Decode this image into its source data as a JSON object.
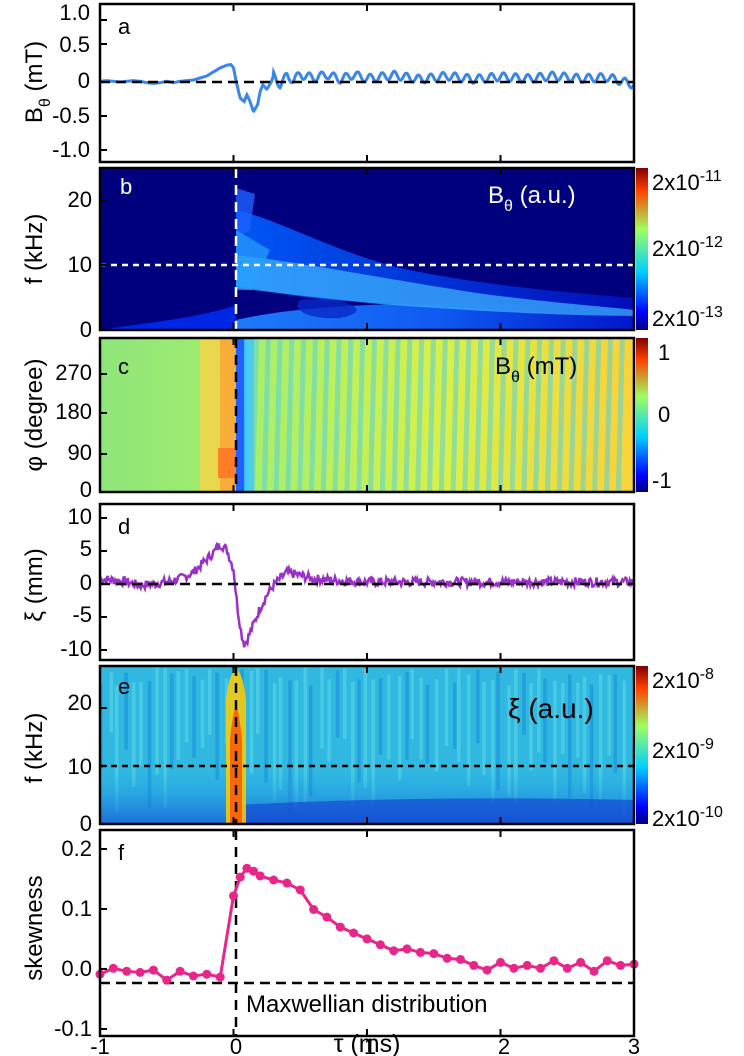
{
  "chart_data": [
    {
      "id": "a",
      "type": "line",
      "panel_label": "a",
      "ylabel": "B",
      "ylabel_sub": "θ",
      "ylabel_unit": " (mT)",
      "xlim": [
        -1,
        3
      ],
      "ylim": [
        -1.2,
        1.15
      ],
      "yticks": [
        "-1.0",
        "-0.5",
        "0",
        "0.5",
        "1.0"
      ],
      "ytick_values": [
        -1.0,
        -0.5,
        0,
        0.5,
        1.0
      ],
      "color": "#3a86e8",
      "x": [
        -1.0,
        -0.95,
        -0.9,
        -0.85,
        -0.8,
        -0.75,
        -0.7,
        -0.65,
        -0.6,
        -0.55,
        -0.5,
        -0.45,
        -0.4,
        -0.35,
        -0.3,
        -0.25,
        -0.2,
        -0.15,
        -0.1,
        -0.05,
        -0.02,
        0.0,
        0.02,
        0.05,
        0.08,
        0.1,
        0.12,
        0.15,
        0.18,
        0.2,
        0.22,
        0.25,
        0.28,
        0.3,
        0.35,
        0.4,
        0.45,
        0.5,
        0.6,
        0.7,
        0.8,
        0.9,
        1.0,
        1.2,
        1.4,
        1.6,
        1.8,
        2.0,
        2.2,
        2.4,
        2.6,
        2.8,
        3.0
      ],
      "y": [
        0.0,
        0.01,
        0.0,
        -0.01,
        0.0,
        0.01,
        0.0,
        -0.02,
        -0.03,
        -0.02,
        0.0,
        -0.02,
        0.0,
        0.01,
        0.02,
        0.05,
        0.08,
        0.14,
        0.2,
        0.24,
        0.25,
        0.2,
        0.0,
        -0.25,
        -0.3,
        -0.2,
        -0.28,
        -0.45,
        -0.35,
        -0.15,
        -0.05,
        -0.12,
        -0.02,
        0.08,
        -0.05,
        0.08,
        0.02,
        0.1,
        0.05,
        0.1,
        0.03,
        0.1,
        0.04,
        0.09,
        0.03,
        0.08,
        0.03,
        0.07,
        0.04,
        0.08,
        0.04,
        0.06,
        -0.05
      ],
      "osc_amp": 0.06,
      "osc_freq_khz": 11,
      "hlines": [
        0
      ],
      "vlines": [
        0
      ]
    },
    {
      "id": "b",
      "type": "heatmap",
      "panel_label": "b",
      "ylabel": "f (kHz)",
      "xlim": [
        -1,
        3
      ],
      "ylim": [
        0,
        25
      ],
      "yticks": [
        "0",
        "10",
        "20"
      ],
      "ytick_values": [
        0,
        10,
        20
      ],
      "title": "B",
      "title_sub": "θ",
      "title_unit": " (a.u.)",
      "colorbar_ticks": [
        "2x10-11",
        "2x10-12",
        "2x10-13"
      ],
      "colorbar_labels": [
        {
          "base": "2x10",
          "exp": "-11"
        },
        {
          "base": "2x10",
          "exp": "-12"
        },
        {
          "base": "2x10",
          "exp": "-13"
        }
      ],
      "hlines_dotted": [
        10
      ],
      "vlines": [
        0
      ]
    },
    {
      "id": "c",
      "type": "heatmap",
      "panel_label": "c",
      "ylabel": "φ (degree)",
      "xlim": [
        -1,
        3
      ],
      "ylim": [
        0,
        360
      ],
      "yticks": [
        "0",
        "90",
        "180",
        "270"
      ],
      "ytick_values": [
        0,
        90,
        180,
        270
      ],
      "title": "B",
      "title_sub": "θ",
      "title_unit": " (mT)",
      "colorbar_ticks": [
        "1",
        "0",
        "-1"
      ],
      "vlines": [
        0
      ]
    },
    {
      "id": "d",
      "type": "line",
      "panel_label": "d",
      "ylabel": "ξ (mm)",
      "xlim": [
        -1,
        3
      ],
      "ylim": [
        -12,
        12
      ],
      "yticks": [
        "-10",
        "-5",
        "0",
        "5",
        "10"
      ],
      "ytick_values": [
        -10,
        -5,
        0,
        5,
        10
      ],
      "color": "#9b30c8",
      "x": [
        -1.0,
        -0.9,
        -0.8,
        -0.7,
        -0.6,
        -0.5,
        -0.4,
        -0.3,
        -0.25,
        -0.2,
        -0.15,
        -0.1,
        -0.05,
        0.0,
        0.03,
        0.06,
        0.08,
        0.1,
        0.15,
        0.2,
        0.25,
        0.3,
        0.35,
        0.4,
        0.5,
        0.6,
        0.8,
        1.0,
        1.5,
        2.0,
        2.5,
        3.0
      ],
      "y": [
        0.5,
        0.3,
        0.0,
        -0.5,
        -0.3,
        0.0,
        0.5,
        1.5,
        2.5,
        3.5,
        4.5,
        5.8,
        5.0,
        2.0,
        -4.0,
        -8.0,
        -9.5,
        -9.0,
        -6.5,
        -4.0,
        -2.0,
        -0.5,
        0.5,
        1.5,
        1.0,
        0.5,
        0.2,
        0.0,
        0.0,
        0.0,
        0.0,
        0.0
      ],
      "noise": 0.7,
      "hlines": [
        0
      ],
      "vlines": [
        0
      ]
    },
    {
      "id": "e",
      "type": "heatmap",
      "panel_label": "e",
      "ylabel": "f (kHz)",
      "xlim": [
        -1,
        3
      ],
      "ylim": [
        0,
        25
      ],
      "yticks": [
        "0",
        "10",
        "20"
      ],
      "ytick_values": [
        0,
        10,
        20
      ],
      "title": "ξ (a.u.)",
      "colorbar_ticks": [
        "2x10-8",
        "2x10-9",
        "2x10-10"
      ],
      "colorbar_labels": [
        {
          "base": "2x10",
          "exp": "-8"
        },
        {
          "base": "2x10",
          "exp": "-9"
        },
        {
          "base": "2x10",
          "exp": "-10"
        }
      ],
      "hlines_dotted": [
        10
      ],
      "vlines": [
        0
      ]
    },
    {
      "id": "f",
      "type": "line",
      "panel_label": "f",
      "ylabel": "skewness",
      "xlim": [
        -1,
        3
      ],
      "ylim": [
        -0.12,
        0.23
      ],
      "yticks": [
        "-0.1",
        "0.0",
        "0.1",
        "0.2"
      ],
      "ytick_values": [
        -0.1,
        0.0,
        0.1,
        0.2
      ],
      "xlabel": "τ (ms)",
      "xticks": [
        "-1",
        "0",
        "1",
        "2",
        "3"
      ],
      "xtick_values": [
        -1,
        0,
        1,
        2,
        3
      ],
      "color": "#e8268a",
      "x": [
        -1.0,
        -0.9,
        -0.8,
        -0.7,
        -0.6,
        -0.5,
        -0.4,
        -0.3,
        -0.2,
        -0.1,
        0.0,
        0.05,
        0.1,
        0.15,
        0.2,
        0.3,
        0.4,
        0.5,
        0.6,
        0.7,
        0.8,
        0.9,
        1.0,
        1.1,
        1.2,
        1.3,
        1.4,
        1.5,
        1.6,
        1.7,
        1.8,
        1.9,
        2.0,
        2.1,
        2.2,
        2.3,
        2.4,
        2.5,
        2.6,
        2.7,
        2.8,
        2.9,
        3.0
      ],
      "y": [
        -0.015,
        -0.005,
        -0.01,
        -0.012,
        -0.008,
        -0.025,
        -0.01,
        -0.018,
        -0.015,
        -0.02,
        0.118,
        0.15,
        0.165,
        0.16,
        0.152,
        0.145,
        0.14,
        0.128,
        0.095,
        0.082,
        0.065,
        0.055,
        0.045,
        0.035,
        0.025,
        0.028,
        0.022,
        0.02,
        0.012,
        0.01,
        0.0,
        -0.008,
        0.005,
        -0.005,
        0.0,
        -0.005,
        0.008,
        -0.005,
        0.005,
        -0.01,
        0.008,
        0.0,
        0.002
      ],
      "hlines": [
        -0.02
      ],
      "vlines": [
        0
      ],
      "annotation": "Maxwellian distribution"
    }
  ]
}
